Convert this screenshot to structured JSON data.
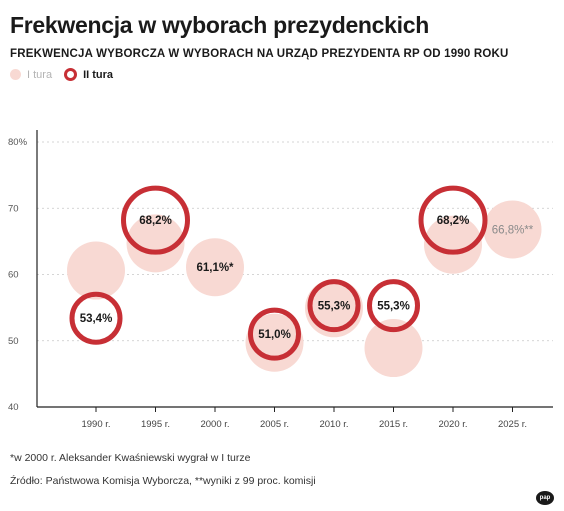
{
  "header": {
    "title": "Frekwencja w wyborach prezydenckich",
    "subtitle": "FREKWENCJA WYBORCZA W WYBORACH NA URZĄD PREZYDENTA RP OD 1990 ROKU"
  },
  "legend": {
    "round1": "I tura",
    "round2": "II tura"
  },
  "colors": {
    "round1_fill": "#f8d9d3",
    "round2_ring": "#c72f35",
    "round1_label_muted": "#8a8a8a"
  },
  "chart_data": {
    "type": "scatter",
    "title": "Frekwencja w wyborach prezydenckich",
    "subtitle": "FREKWENCJA WYBORCZA W WYBORACH NA URZĄD PREZYDENTA RP OD 1990 ROKU",
    "xlabel": "",
    "ylabel": "",
    "categories": [
      "1990 r.",
      "1995 r.",
      "2000 r.",
      "2005 r.",
      "2010 r.",
      "2015 r.",
      "2020 r.",
      "2025 r."
    ],
    "ylim": [
      40,
      80
    ],
    "yticks": [
      "80%",
      "70",
      "60",
      "50",
      "40"
    ],
    "ytick_values": [
      80,
      70,
      60,
      50,
      40
    ],
    "grid": true,
    "legend_position": "top-left",
    "series": [
      {
        "name": "I tura",
        "style": "filled-circle",
        "points": [
          {
            "category": "1990 r.",
            "value": 60.6,
            "label": ""
          },
          {
            "category": "1995 r.",
            "value": 64.7,
            "label": ""
          },
          {
            "category": "2000 r.",
            "value": 61.1,
            "label": "61,1%*"
          },
          {
            "category": "2005 r.",
            "value": 49.7,
            "label": ""
          },
          {
            "category": "2010 r.",
            "value": 54.9,
            "label": ""
          },
          {
            "category": "2015 r.",
            "value": 48.9,
            "label": ""
          },
          {
            "category": "2020 r.",
            "value": 64.5,
            "label": ""
          },
          {
            "category": "2025 r.",
            "value": 66.8,
            "label": "66,8%**"
          }
        ]
      },
      {
        "name": "II tura",
        "style": "ring",
        "points": [
          {
            "category": "1990 r.",
            "value": 53.4,
            "label": "53,4%"
          },
          {
            "category": "1995 r.",
            "value": 68.2,
            "label": "68,2%"
          },
          {
            "category": "2005 r.",
            "value": 51.0,
            "label": "51,0%"
          },
          {
            "category": "2010 r.",
            "value": 55.3,
            "label": "55,3%"
          },
          {
            "category": "2015 r.",
            "value": 55.3,
            "label": "55,3%"
          },
          {
            "category": "2020 r.",
            "value": 68.2,
            "label": "68,2%"
          }
        ]
      }
    ]
  },
  "footnotes": {
    "note1": "*w 2000 r. Aleksander Kwaśniewski wygrał w I turze",
    "note2": "Źródło: Państwowa Komisja Wyborcza, **wyniki z 99 proc. komisji"
  },
  "logo": {
    "text": "pap"
  }
}
